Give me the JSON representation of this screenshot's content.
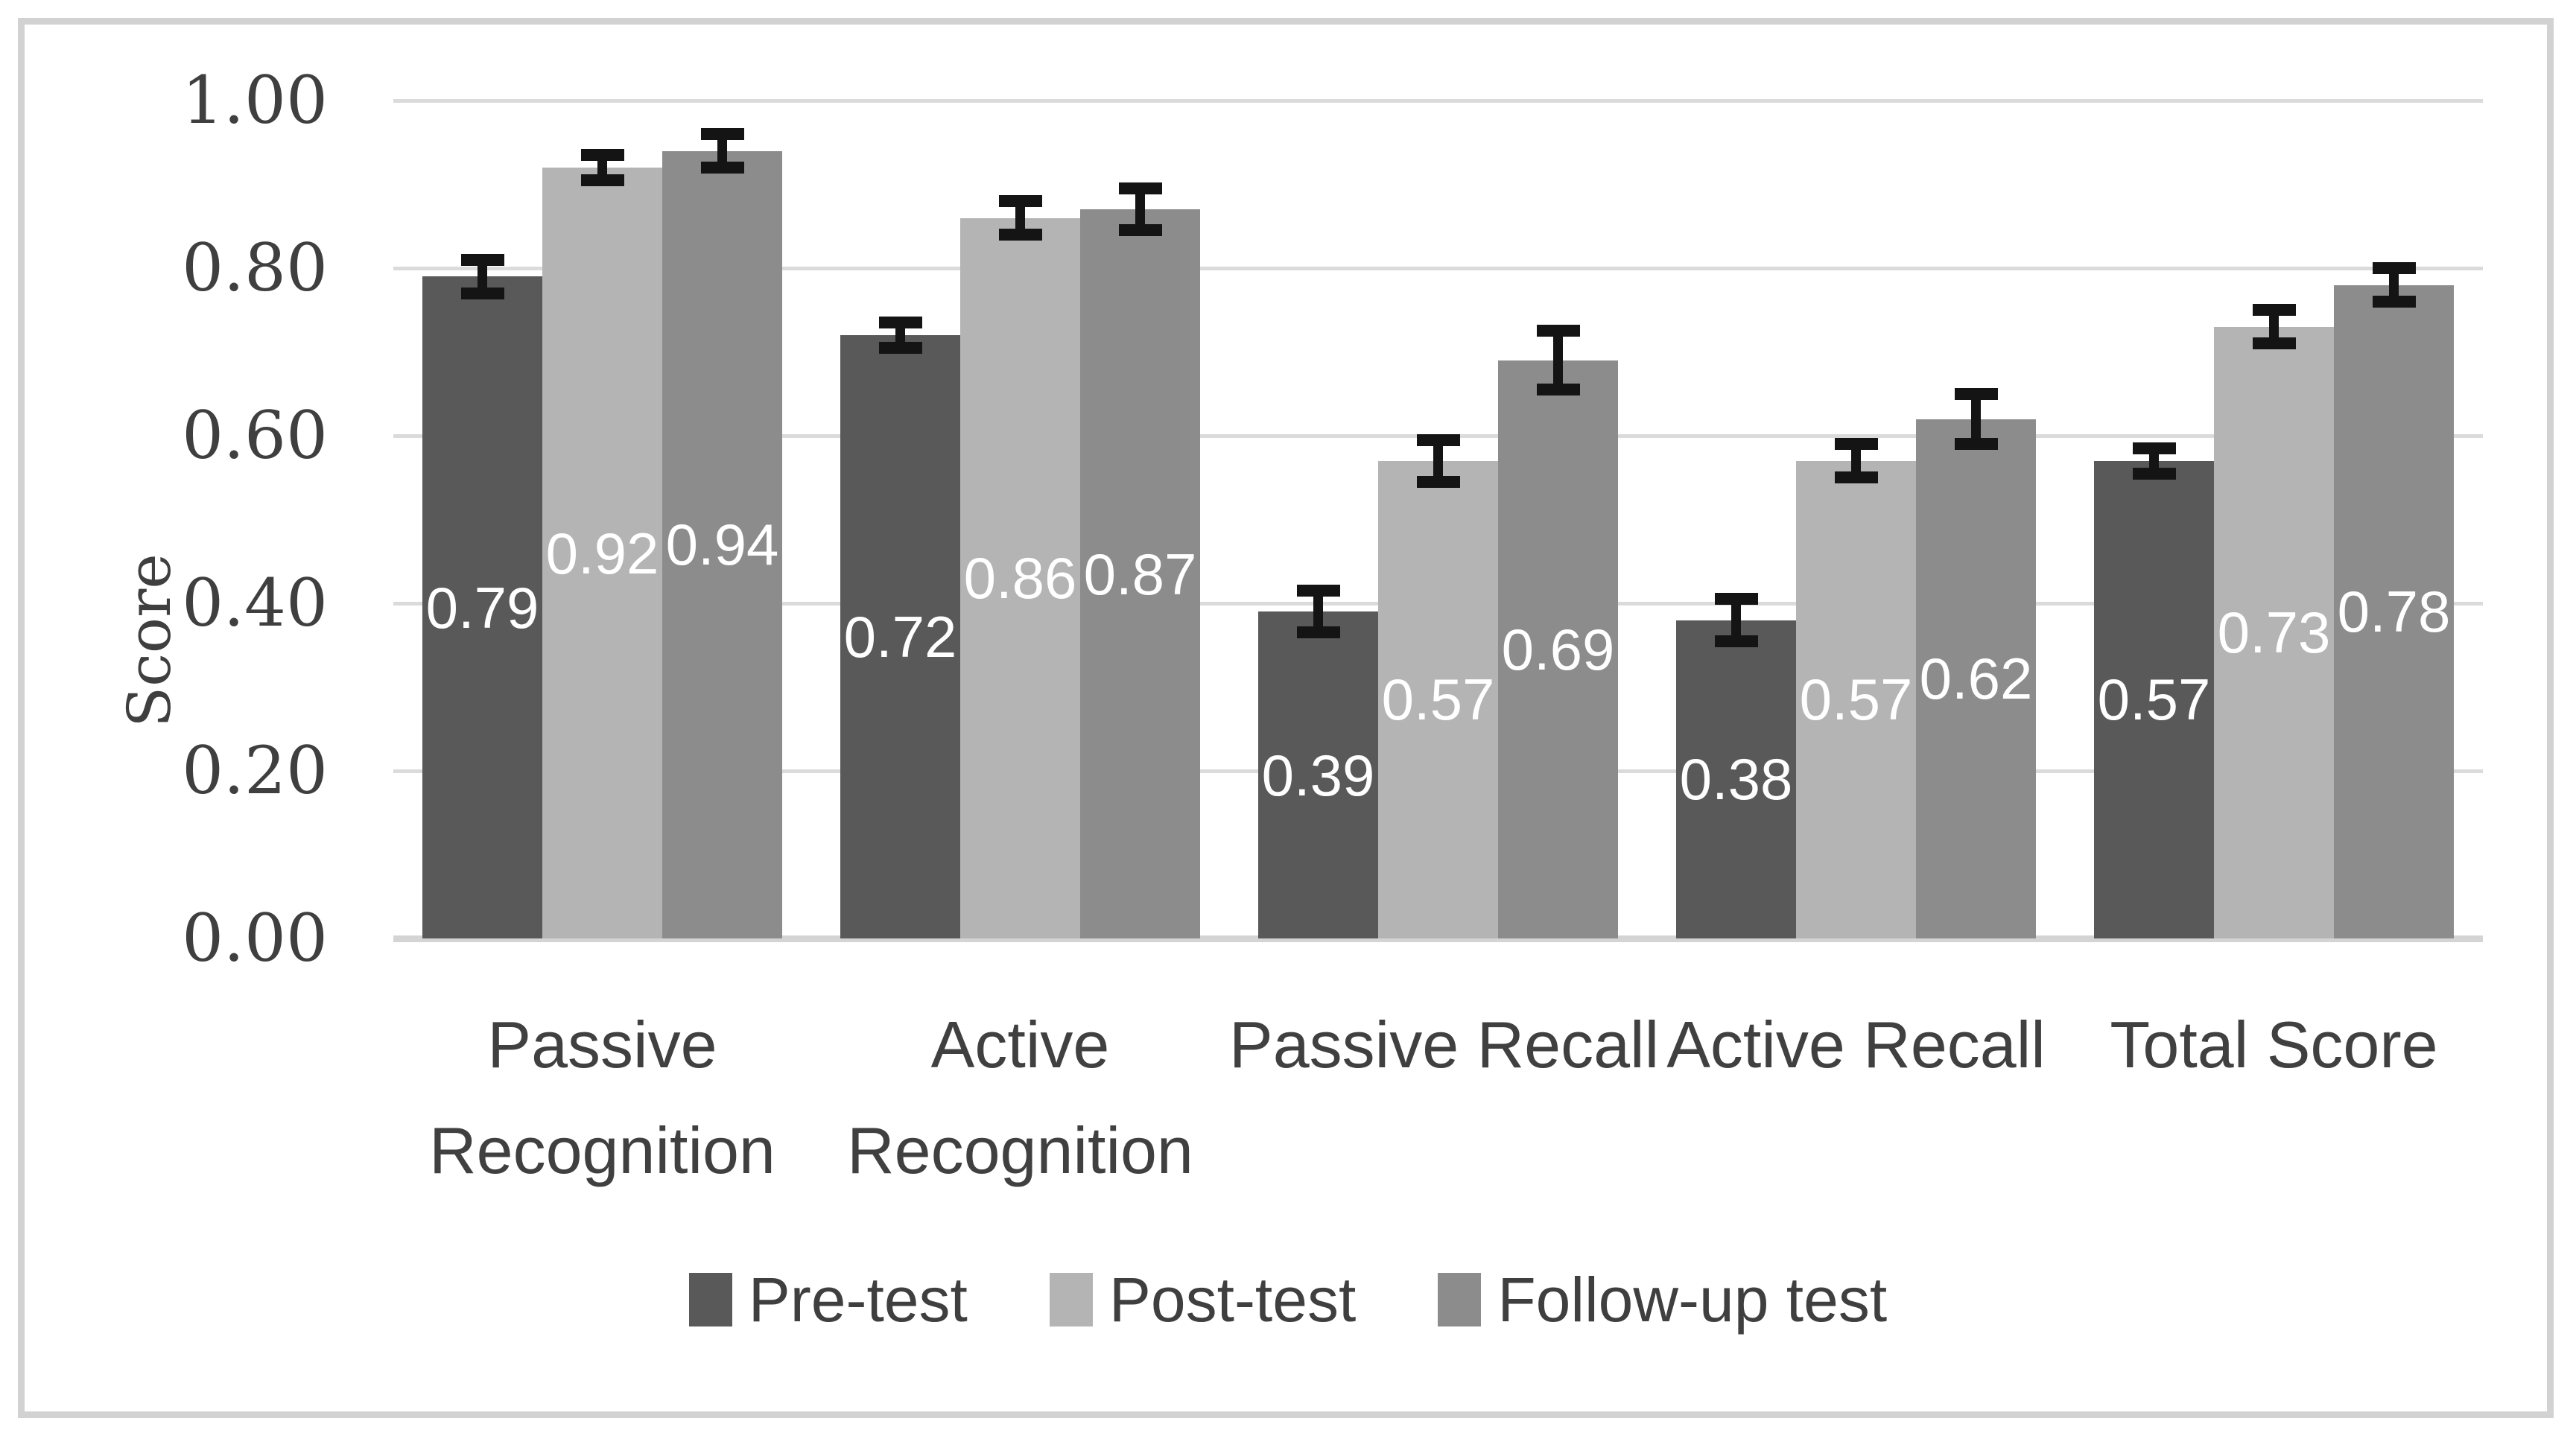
{
  "chart_data": {
    "type": "bar",
    "title": "",
    "xlabel": "",
    "ylabel": "Score",
    "ylim": [
      0,
      1
    ],
    "ytick_step": 0.2,
    "yticks": [
      "0.00",
      "0.20",
      "0.40",
      "0.60",
      "0.80",
      "1.00"
    ],
    "grid": true,
    "legend_position": "bottom",
    "categories": [
      "Passive Recognition",
      "Active Recognition",
      "Passive Recall",
      "Active Recall",
      "Total Score"
    ],
    "category_lines": [
      [
        "Passive",
        "Recognition"
      ],
      [
        "Active",
        "Recognition"
      ],
      [
        "Passive Recall"
      ],
      [
        "Active Recall"
      ],
      [
        "Total Score"
      ]
    ],
    "series": [
      {
        "name": "Pre-test",
        "color": "#595959",
        "values": [
          0.79,
          0.72,
          0.39,
          0.38,
          0.57
        ],
        "labels": [
          "0.79",
          "0.72",
          "0.39",
          "0.38",
          "0.57"
        ],
        "errors": [
          0.02,
          0.015,
          0.025,
          0.025,
          0.015
        ]
      },
      {
        "name": "Post-test",
        "color": "#b4b4b4",
        "values": [
          0.92,
          0.86,
          0.57,
          0.57,
          0.73
        ],
        "labels": [
          "0.92",
          "0.86",
          "0.57",
          "0.57",
          "0.73"
        ],
        "errors": [
          0.015,
          0.02,
          0.025,
          0.02,
          0.02
        ]
      },
      {
        "name": "Follow-up test",
        "color": "#8c8c8c",
        "values": [
          0.94,
          0.87,
          0.69,
          0.62,
          0.78
        ],
        "labels": [
          "0.94",
          "0.87",
          "0.69",
          "0.62",
          "0.78"
        ],
        "errors": [
          0.02,
          0.025,
          0.035,
          0.03,
          0.02
        ]
      }
    ],
    "style": {
      "data_label_color": "#ffffff",
      "error_bar_color": "#141414",
      "grid_color": "#dbdbdb",
      "axis_line_color": "#d4d4d4",
      "frame_color": "#d2d2d2",
      "text_color": "#3f3f3f"
    }
  }
}
